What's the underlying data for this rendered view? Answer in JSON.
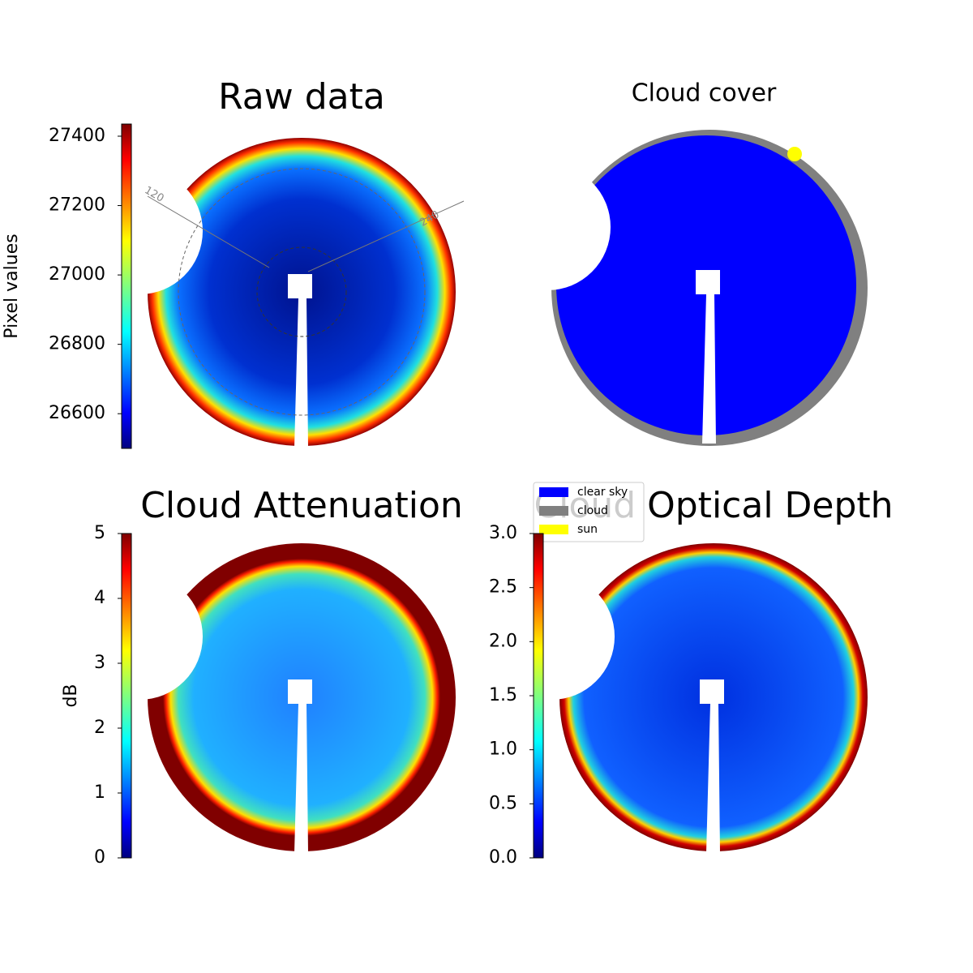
{
  "chart_data": [
    {
      "type": "image",
      "title": "Raw data",
      "colorbar_label": "Pixel values",
      "cmap": "jet",
      "clim": [
        26500,
        27435
      ],
      "cticks": [
        26600,
        26800,
        27000,
        27200,
        27400
      ],
      "annotations": [
        "120",
        "240"
      ]
    },
    {
      "type": "image",
      "title": "Cloud cover",
      "series": [
        {
          "name": "clear sky",
          "color": "#0000ff"
        },
        {
          "name": "cloud",
          "color": "#808080"
        },
        {
          "name": "sun",
          "color": "#ffff00"
        }
      ]
    },
    {
      "type": "image",
      "title": "Cloud Attenuation",
      "colorbar_label": "dB",
      "cmap": "jet",
      "clim": [
        0,
        5
      ],
      "cticks": [
        0,
        1,
        2,
        3,
        4,
        5
      ]
    },
    {
      "type": "image",
      "title": "Cloud Optical Depth",
      "cmap": "jet",
      "clim": [
        0,
        3
      ],
      "cticks": [
        {
          "value": 0,
          "label": "0.0"
        },
        {
          "value": 0.5,
          "label": "0.5"
        },
        {
          "value": 1,
          "label": "1.0"
        },
        {
          "value": 1.5,
          "label": "1.5"
        },
        {
          "value": 2,
          "label": "2.0"
        },
        {
          "value": 2.5,
          "label": "2.5"
        },
        {
          "value": 3,
          "label": "3.0"
        }
      ]
    }
  ]
}
